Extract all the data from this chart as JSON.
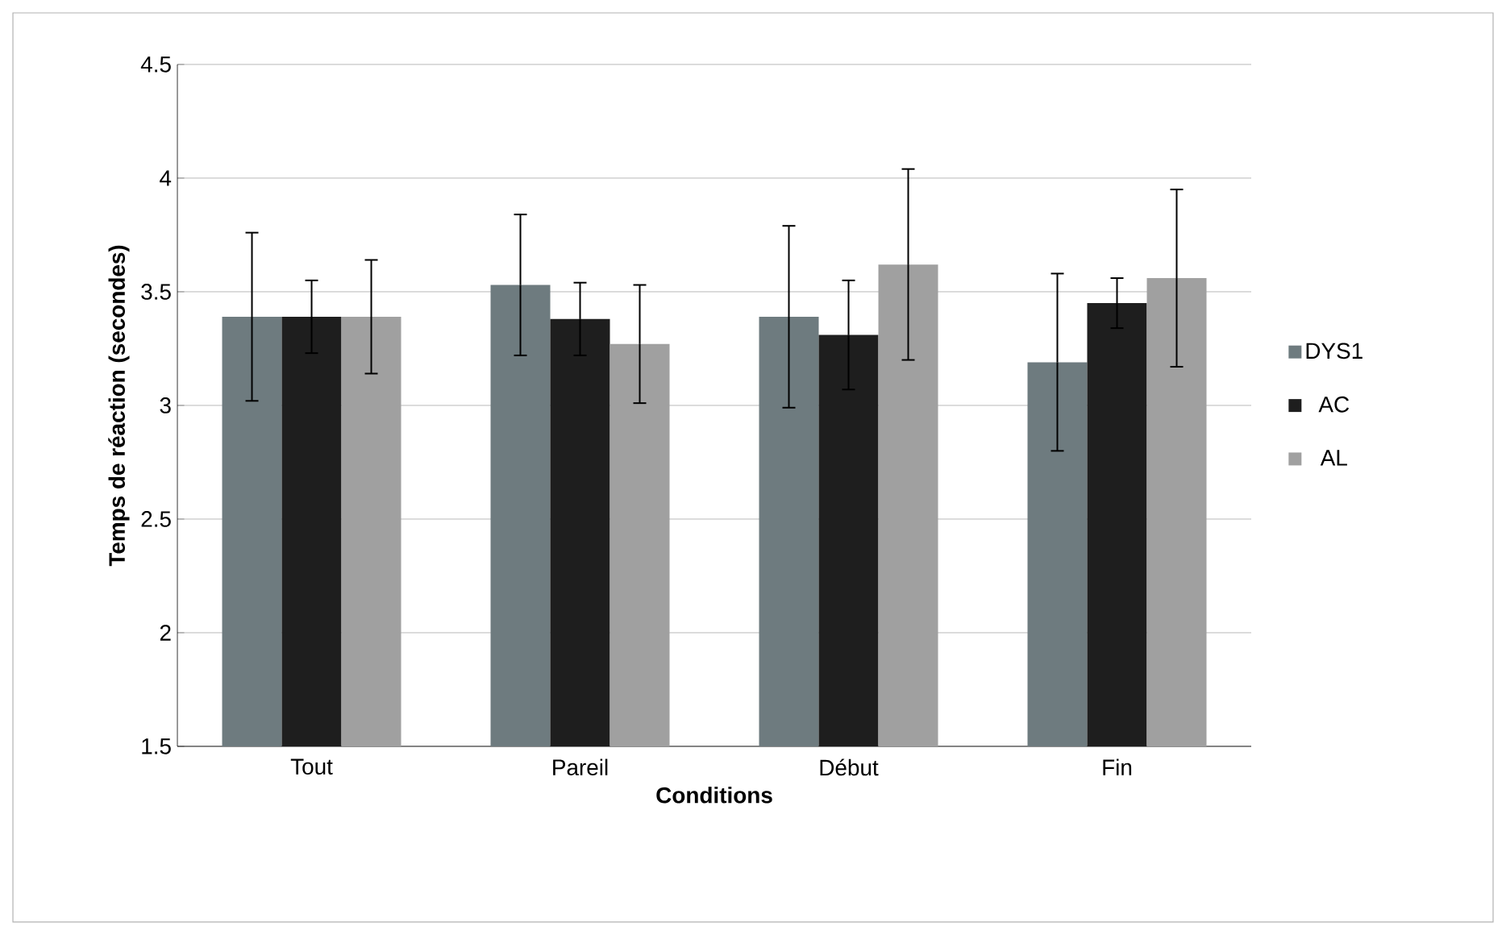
{
  "chart_data": {
    "type": "bar",
    "xlabel": "Conditions",
    "ylabel": "Temps de réaction (secondes)",
    "categories": [
      "Tout",
      "Pareil",
      "Début",
      "Fin"
    ],
    "series": [
      {
        "name": "DYS1",
        "color": "#6e7b7f",
        "values": [
          3.39,
          3.53,
          3.39,
          3.19
        ],
        "errors": [
          0.37,
          0.31,
          0.4,
          0.39
        ]
      },
      {
        "name": "AC",
        "color": "#1e1e1e",
        "values": [
          3.39,
          3.38,
          3.31,
          3.45
        ],
        "errors": [
          0.16,
          0.16,
          0.24,
          0.11
        ]
      },
      {
        "name": "AL",
        "color": "#a0a0a0",
        "values": [
          3.39,
          3.27,
          3.62,
          3.56
        ],
        "errors": [
          0.25,
          0.26,
          0.42,
          0.39
        ]
      }
    ],
    "ylim": [
      1.5,
      4.5
    ],
    "yticks": [
      1.5,
      2,
      2.5,
      3,
      3.5,
      4,
      4.5
    ],
    "grid": "y",
    "legend": "right"
  }
}
